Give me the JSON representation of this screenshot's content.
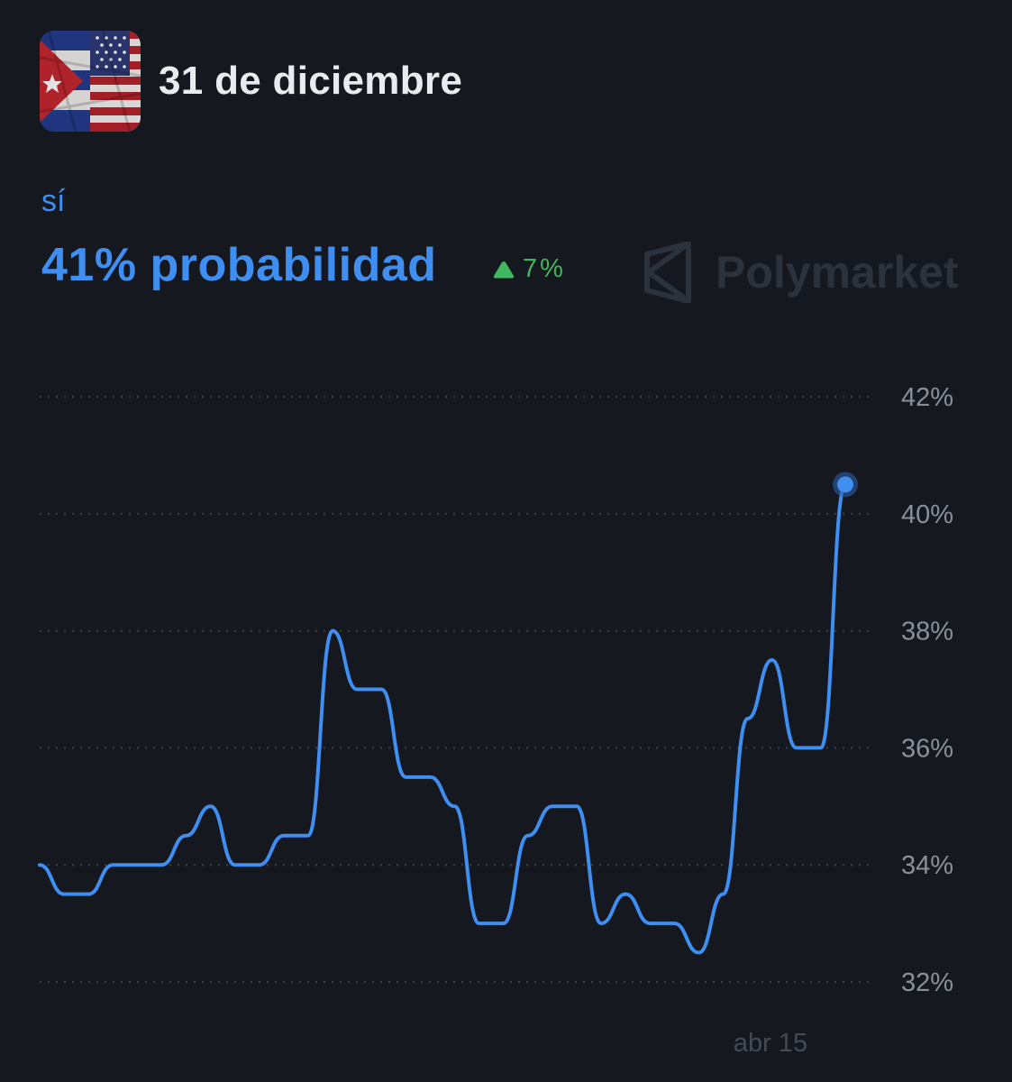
{
  "header": {
    "title": "31 de diciembre",
    "avatar_icon": "cuba-usa-flags-icon"
  },
  "outcome": {
    "label": "sí",
    "probability": "41% probabilidad",
    "change": "7%",
    "change_icon": "triangle-up-icon",
    "change_color": "#3fb65f"
  },
  "watermark": {
    "text": "Polymarket",
    "icon": "polymarket-logo-icon"
  },
  "colors": {
    "line": "#3f8ef2",
    "background": "#15181e"
  },
  "chart_data": {
    "type": "line",
    "title": "",
    "xlabel": "",
    "ylabel": "",
    "ylim": [
      32,
      42
    ],
    "y_ticks": [
      "42%",
      "40%",
      "38%",
      "36%",
      "34%",
      "32%"
    ],
    "y_tick_values": [
      42,
      40,
      38,
      36,
      34,
      32
    ],
    "x_tick_labels": [
      "abr 15"
    ],
    "grid": true,
    "series": [
      {
        "values": [
          34.0,
          33.5,
          33.5,
          34.0,
          34.0,
          34.0,
          34.5,
          35.0,
          34.0,
          34.0,
          34.5,
          34.5,
          38.0,
          37.0,
          37.0,
          35.5,
          35.5,
          35.0,
          33.0,
          33.0,
          34.5,
          35.0,
          35.0,
          33.0,
          33.5,
          33.0,
          33.0,
          32.5,
          33.5,
          36.5,
          37.5,
          36.0,
          36.0,
          40.5
        ]
      }
    ]
  }
}
